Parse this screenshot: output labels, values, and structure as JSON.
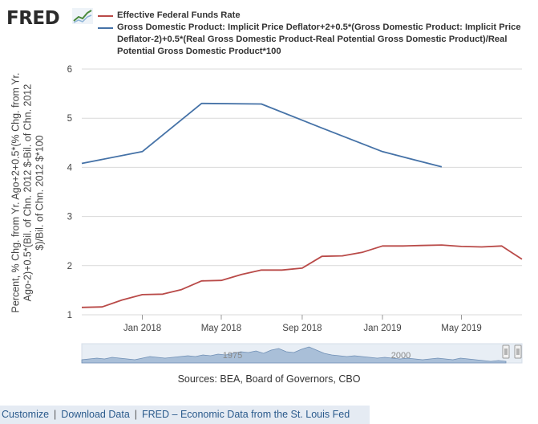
{
  "brand": {
    "logo_text": "FRED",
    "logo_icon": "fred-sparkline-icon"
  },
  "colors": {
    "fed_funds": "#b94a48",
    "gdp_rule": "#4572a7",
    "grid": "#d9d9d9",
    "navigator_fill": "#a9bfd8",
    "navigator_bg": "#e8eef5",
    "footer_bg": "#e5ebf3"
  },
  "chart_data": {
    "type": "line",
    "ylabel": "Percent, % Chg. from Yr. Ago+2+0.5*(% Chg. from Yr. Ago-2)+0.5*(Bil. of Chn. 2012 $-Bil. of Chn. 2012 $)/Bil. of Chn. 2012 $*100",
    "xlabel": "",
    "ylim": [
      1,
      6
    ],
    "xlim": [
      "2017-10-01",
      "2019-08-01"
    ],
    "yticks": [
      "1",
      "2",
      "3",
      "4",
      "5",
      "6"
    ],
    "xticks": [
      {
        "date": "2018-01-01",
        "label": "Jan 2018"
      },
      {
        "date": "2018-05-01",
        "label": "May 2018"
      },
      {
        "date": "2018-09-01",
        "label": "Sep 2018"
      },
      {
        "date": "2019-01-01",
        "label": "Jan 2019"
      },
      {
        "date": "2019-05-01",
        "label": "May 2019"
      }
    ],
    "grid": true,
    "legend_position": "top",
    "series": [
      {
        "name": "Effective Federal Funds Rate",
        "color": "#b94a48",
        "points": [
          {
            "x": "2017-10-01",
            "y": 1.15
          },
          {
            "x": "2017-11-01",
            "y": 1.16
          },
          {
            "x": "2017-12-01",
            "y": 1.3
          },
          {
            "x": "2018-01-01",
            "y": 1.41
          },
          {
            "x": "2018-02-01",
            "y": 1.42
          },
          {
            "x": "2018-03-01",
            "y": 1.51
          },
          {
            "x": "2018-04-01",
            "y": 1.69
          },
          {
            "x": "2018-05-01",
            "y": 1.7
          },
          {
            "x": "2018-06-01",
            "y": 1.82
          },
          {
            "x": "2018-07-01",
            "y": 1.91
          },
          {
            "x": "2018-08-01",
            "y": 1.91
          },
          {
            "x": "2018-09-01",
            "y": 1.95
          },
          {
            "x": "2018-10-01",
            "y": 2.19
          },
          {
            "x": "2018-11-01",
            "y": 2.2
          },
          {
            "x": "2018-12-01",
            "y": 2.27
          },
          {
            "x": "2019-01-01",
            "y": 2.4
          },
          {
            "x": "2019-02-01",
            "y": 2.4
          },
          {
            "x": "2019-03-01",
            "y": 2.41
          },
          {
            "x": "2019-04-01",
            "y": 2.42
          },
          {
            "x": "2019-05-01",
            "y": 2.39
          },
          {
            "x": "2019-06-01",
            "y": 2.38
          },
          {
            "x": "2019-07-01",
            "y": 2.4
          },
          {
            "x": "2019-08-01",
            "y": 2.13
          }
        ]
      },
      {
        "name": "Gross Domestic Product: Implicit Price Deflator+2+0.5*(Gross Domestic Product: Implicit Price Deflator-2)+0.5*(Real Gross Domestic Product-Real Potential Gross Domestic Product)/Real Potential Gross Domestic Product*100",
        "color": "#4572a7",
        "points": [
          {
            "x": "2017-10-01",
            "y": 4.08
          },
          {
            "x": "2018-01-01",
            "y": 4.32
          },
          {
            "x": "2018-04-01",
            "y": 5.3
          },
          {
            "x": "2018-07-01",
            "y": 5.29
          },
          {
            "x": "2018-10-01",
            "y": 4.8
          },
          {
            "x": "2019-01-01",
            "y": 4.32
          },
          {
            "x": "2019-04-01",
            "y": 4.01
          }
        ]
      }
    ],
    "navigator": {
      "labels": [
        "1975",
        "2000"
      ]
    },
    "source_text": "Sources: BEA, Board of Governors, CBO"
  },
  "footer": {
    "customize": "Customize",
    "separator": "|",
    "download": "Download Data",
    "fred_link": "FRED – Economic Data from the St. Louis Fed"
  }
}
